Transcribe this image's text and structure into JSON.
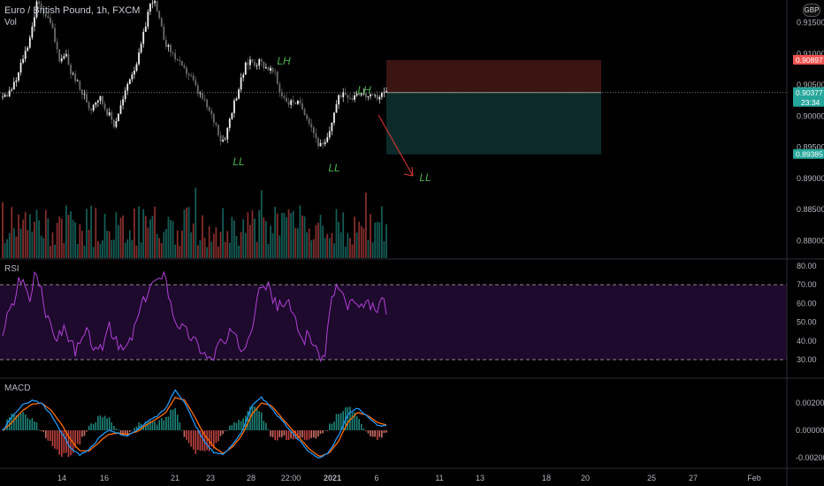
{
  "header": {
    "symbol": "Euro / British Pound, 1h, FXCM",
    "volume_label": "Vol",
    "currency_badge": "GBP"
  },
  "panes": {
    "rsi_label": "RSI",
    "macd_label": "MACD"
  },
  "colors": {
    "background": "#000000",
    "up": "#26a69a",
    "down": "#ef5350",
    "candle_up": "#f0f0f0",
    "candle_down": "#6b6b6b",
    "rsi_line": "#b040d8",
    "rsi_band": "#1e0a2c",
    "macd_line": "#2196f3",
    "signal_line": "#ff6d00",
    "annotation": "#4caf50",
    "stop_zone": "#3a1512",
    "target_zone": "#0b2a29",
    "arrow": "#e53935"
  },
  "price_axis": {
    "ticks": [
      "0.91500",
      "0.91000",
      "0.90500",
      "0.90000",
      "0.89500",
      "0.89000",
      "0.88500",
      "0.88000"
    ],
    "badges": [
      {
        "text": "0.90897",
        "value": 0.90897,
        "color": "#ef5350"
      },
      {
        "text": "0.90377",
        "value": 0.90377,
        "color": "#26a69a",
        "sub": "23:34"
      },
      {
        "text": "0.89385",
        "value": 0.89385,
        "color": "#26a69a"
      }
    ]
  },
  "rsi_axis": {
    "ticks": [
      "80.00",
      "70.00",
      "60.00",
      "50.00",
      "40.00",
      "30.00"
    ]
  },
  "macd_axis": {
    "ticks": [
      "0.00200",
      "0.00000",
      "-0.00200"
    ]
  },
  "time_axis": {
    "labels": [
      "14",
      "16",
      "21",
      "23",
      "28",
      "22:00",
      "2021",
      "6",
      "11",
      "13",
      "18",
      "20",
      "25",
      "27",
      "Feb"
    ]
  },
  "annotations": [
    "LH",
    "LH",
    "LL",
    "LL",
    "LL"
  ],
  "chart_data": {
    "type": "candlestick",
    "title": "Euro / British Pound, 1h, FXCM",
    "ylim": [
      0.8775,
      0.9175
    ],
    "current_price": 0.90377,
    "position": {
      "entry": 0.90377,
      "stop": 0.90897,
      "target": 0.89385
    },
    "swing_points": [
      {
        "label": "LH",
        "value": 0.9095
      },
      {
        "label": "LH",
        "value": 0.9052
      },
      {
        "label": "LL",
        "value": 0.8955
      },
      {
        "label": "LL",
        "value": 0.8945
      },
      {
        "label": "LL",
        "value": 0.8925
      }
    ],
    "close_path": [
      0.903,
      0.9035,
      0.9045,
      0.906,
      0.909,
      0.911,
      0.914,
      0.918,
      0.9175,
      0.916,
      0.915,
      0.911,
      0.9085,
      0.91,
      0.907,
      0.906,
      0.904,
      0.903,
      0.901,
      0.9025,
      0.903,
      0.9015,
      0.9,
      0.8985,
      0.901,
      0.903,
      0.906,
      0.9075,
      0.9095,
      0.913,
      0.917,
      0.919,
      0.916,
      0.913,
      0.911,
      0.91,
      0.909,
      0.9075,
      0.907,
      0.906,
      0.904,
      0.903,
      0.9015,
      0.9,
      0.8985,
      0.896,
      0.897,
      0.9005,
      0.903,
      0.9055,
      0.908,
      0.909,
      0.9085,
      0.9088,
      0.908,
      0.9075,
      0.9068,
      0.904,
      0.903,
      0.902,
      0.9025,
      0.9018,
      0.901,
      0.8995,
      0.8975,
      0.8955,
      0.895,
      0.8965,
      0.9,
      0.9025,
      0.904,
      0.9035,
      0.903,
      0.904,
      0.9035,
      0.9032,
      0.9028,
      0.903,
      0.9035,
      0.9038
    ],
    "rsi": {
      "overbought": 70,
      "oversold": 30,
      "ylim": [
        25,
        82
      ],
      "values": [
        45,
        55,
        60,
        75,
        70,
        62,
        78,
        65,
        52,
        45,
        42,
        48,
        40,
        35,
        38,
        45,
        40,
        32,
        38,
        48,
        42,
        35,
        36,
        40,
        50,
        58,
        65,
        72,
        70,
        80,
        62,
        52,
        48,
        45,
        42,
        38,
        35,
        30,
        32,
        40,
        38,
        45,
        40,
        35,
        42,
        50,
        72,
        70,
        68,
        60,
        58,
        62,
        55,
        48,
        40,
        45,
        38,
        28,
        35,
        60,
        70,
        65,
        58,
        62,
        55,
        58,
        60,
        55,
        62,
        57
      ]
    },
    "macd": {
      "ylim": [
        -0.0025,
        0.0035
      ],
      "macd": [
        0.0,
        0.001,
        0.0018,
        0.0022,
        0.002,
        0.0012,
        0.0,
        -0.0012,
        -0.0018,
        -0.0014,
        -0.0006,
        0.0,
        -0.0002,
        -0.0004,
        0.0,
        0.0006,
        0.001,
        0.0016,
        0.003,
        0.002,
        0.0005,
        -0.0008,
        -0.0016,
        -0.0018,
        -0.001,
        0.0,
        0.0018,
        0.0024,
        0.0016,
        0.0008,
        0.0,
        -0.0008,
        -0.0016,
        -0.002,
        -0.0016,
        -0.0004,
        0.0012,
        0.0016,
        0.001,
        0.0004,
        0.0003
      ],
      "signal": [
        0.0,
        0.0006,
        0.0014,
        0.0019,
        0.002,
        0.0015,
        0.0006,
        -0.0006,
        -0.0015,
        -0.0015,
        -0.0009,
        -0.0003,
        -0.0002,
        -0.0003,
        -0.0001,
        0.0004,
        0.0008,
        0.0013,
        0.0024,
        0.0022,
        0.001,
        -0.0003,
        -0.0012,
        -0.0017,
        -0.0012,
        -0.0003,
        0.0012,
        0.002,
        0.0018,
        0.001,
        0.0002,
        -0.0006,
        -0.0014,
        -0.0019,
        -0.0017,
        -0.0008,
        0.0006,
        0.0013,
        0.0011,
        0.0006,
        0.0004
      ]
    }
  }
}
